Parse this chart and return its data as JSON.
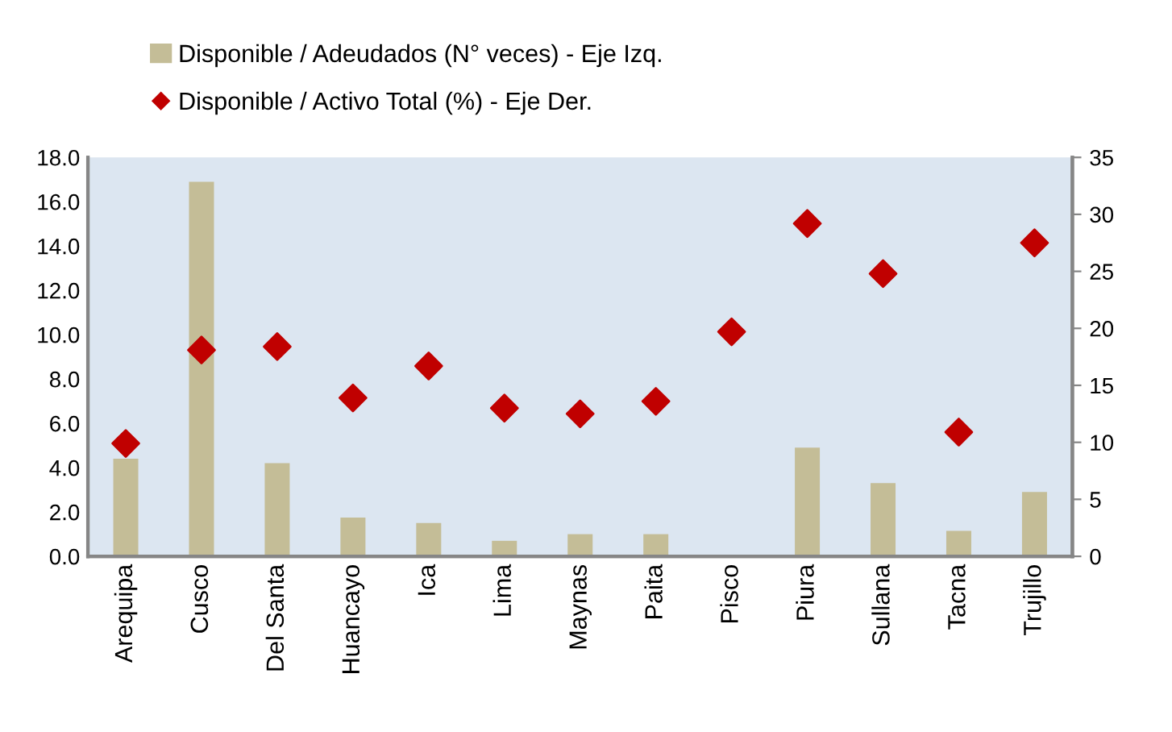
{
  "chart_data": {
    "type": "bar",
    "categories": [
      "Arequipa",
      "Cusco",
      "Del Santa",
      "Huancayo",
      "Ica",
      "Lima",
      "Maynas",
      "Paita",
      "Pisco",
      "Piura",
      "Sullana",
      "Tacna",
      "Trujillo"
    ],
    "series": [
      {
        "name": "Disponible / Adeudados (N° veces) - Eje Izq.",
        "color": "#c4bd97",
        "values": [
          4.4,
          16.9,
          4.2,
          1.75,
          1.5,
          0.7,
          1.0,
          1.0,
          0,
          4.9,
          3.3,
          1.15,
          2.9
        ]
      },
      {
        "name": "Disponible / Activo Total (%) - Eje Der.",
        "type": "scatter",
        "axis": "y2",
        "marker": "diamond",
        "color": "#c00000",
        "values": [
          9.9,
          18.1,
          18.4,
          13.9,
          16.7,
          13.0,
          12.5,
          13.6,
          19.7,
          29.2,
          24.8,
          10.9,
          27.5
        ]
      }
    ],
    "ylim": [
      0,
      18
    ],
    "yticks": [
      {
        "value": 0,
        "label": "0.0"
      },
      {
        "value": 2,
        "label": "2.0"
      },
      {
        "value": 4,
        "label": "4.0"
      },
      {
        "value": 6,
        "label": "6.0"
      },
      {
        "value": 8,
        "label": "8.0"
      },
      {
        "value": 10,
        "label": "10.0"
      },
      {
        "value": 12,
        "label": "12.0"
      },
      {
        "value": 14,
        "label": "14.0"
      },
      {
        "value": 16,
        "label": "16.0"
      },
      {
        "value": 18,
        "label": "18.0"
      }
    ],
    "y2lim": [
      0,
      35
    ],
    "y2ticks": [
      0,
      5,
      10,
      15,
      20,
      25,
      30,
      35
    ],
    "grid": false,
    "legend": "top left"
  }
}
